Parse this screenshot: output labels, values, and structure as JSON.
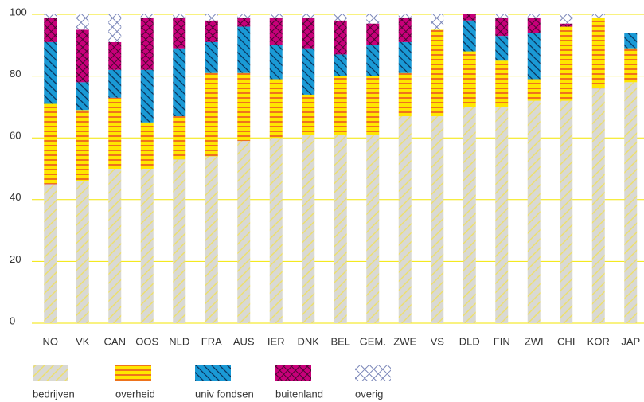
{
  "chart_data": {
    "type": "stacked_bar",
    "categories": [
      "NO",
      "VK",
      "CAN",
      "OOS",
      "NLD",
      "FRA",
      "AUS",
      "IER",
      "DNK",
      "BEL",
      "GEM.",
      "ZWE",
      "VS",
      "DLD",
      "FIN",
      "ZWI",
      "CHI",
      "KOR",
      "JAP"
    ],
    "series": [
      {
        "name": "bedrijven",
        "color": "#d9d9d4",
        "values": [
          45,
          46,
          50,
          50,
          53,
          54,
          59,
          60,
          61,
          61,
          61,
          67,
          67,
          70,
          70,
          72,
          72,
          76,
          78
        ]
      },
      {
        "name": "overheid",
        "color": "#ffe600",
        "values": [
          26,
          23,
          23,
          15,
          14,
          27,
          22,
          19,
          13,
          19,
          19,
          14,
          28,
          18,
          15,
          7,
          24,
          23,
          11
        ]
      },
      {
        "name": "univ fondsen",
        "color": "#1a9ad6",
        "values": [
          20,
          9,
          9,
          17,
          22,
          10,
          15,
          11,
          15,
          7,
          10,
          10,
          0,
          10,
          8,
          15,
          0,
          0,
          5
        ]
      },
      {
        "name": "buitenland",
        "color": "#c8007a",
        "values": [
          8,
          17,
          9,
          17,
          10,
          7,
          3,
          9,
          10,
          11,
          7,
          8,
          0,
          2,
          6,
          5,
          1,
          0,
          0
        ]
      },
      {
        "name": "overig",
        "color": "#ffffff",
        "values": [
          1,
          5,
          9,
          1,
          1,
          2,
          1,
          1,
          1,
          2,
          3,
          1,
          5,
          0,
          1,
          1,
          3,
          1,
          0
        ]
      }
    ],
    "ylim": [
      0,
      100
    ],
    "yticks": [
      0,
      20,
      40,
      60,
      80,
      100
    ],
    "grid": true
  }
}
